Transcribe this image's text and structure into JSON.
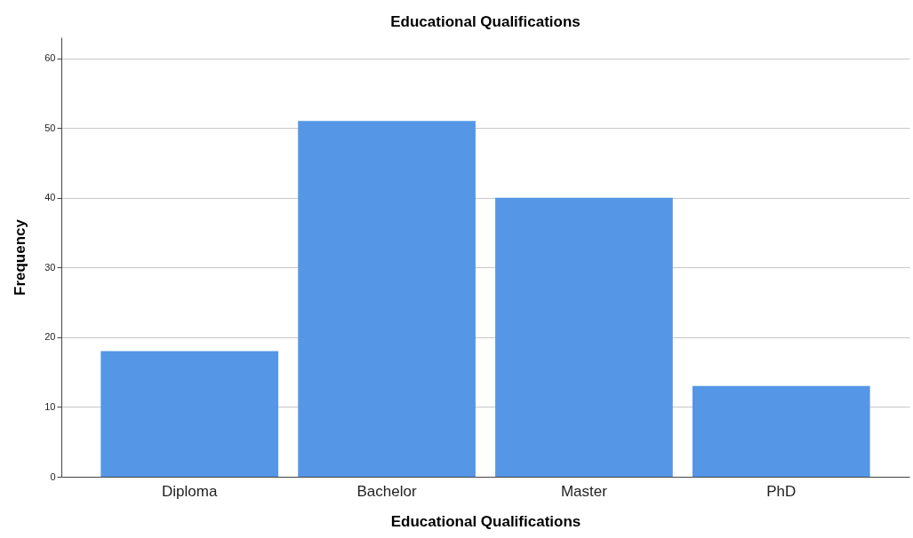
{
  "chart_data": {
    "type": "bar",
    "title": "Educational Qualifications",
    "xlabel": "Educational Qualifications",
    "ylabel": "Frequency",
    "categories": [
      "Diploma",
      "Bachelor",
      "Master",
      "PhD"
    ],
    "values": [
      18,
      51,
      40,
      13
    ],
    "color": "#5596e6",
    "ylim": [
      0,
      63
    ],
    "yticks": [
      0,
      10,
      20,
      30,
      40,
      50,
      60
    ],
    "grid": "y"
  }
}
